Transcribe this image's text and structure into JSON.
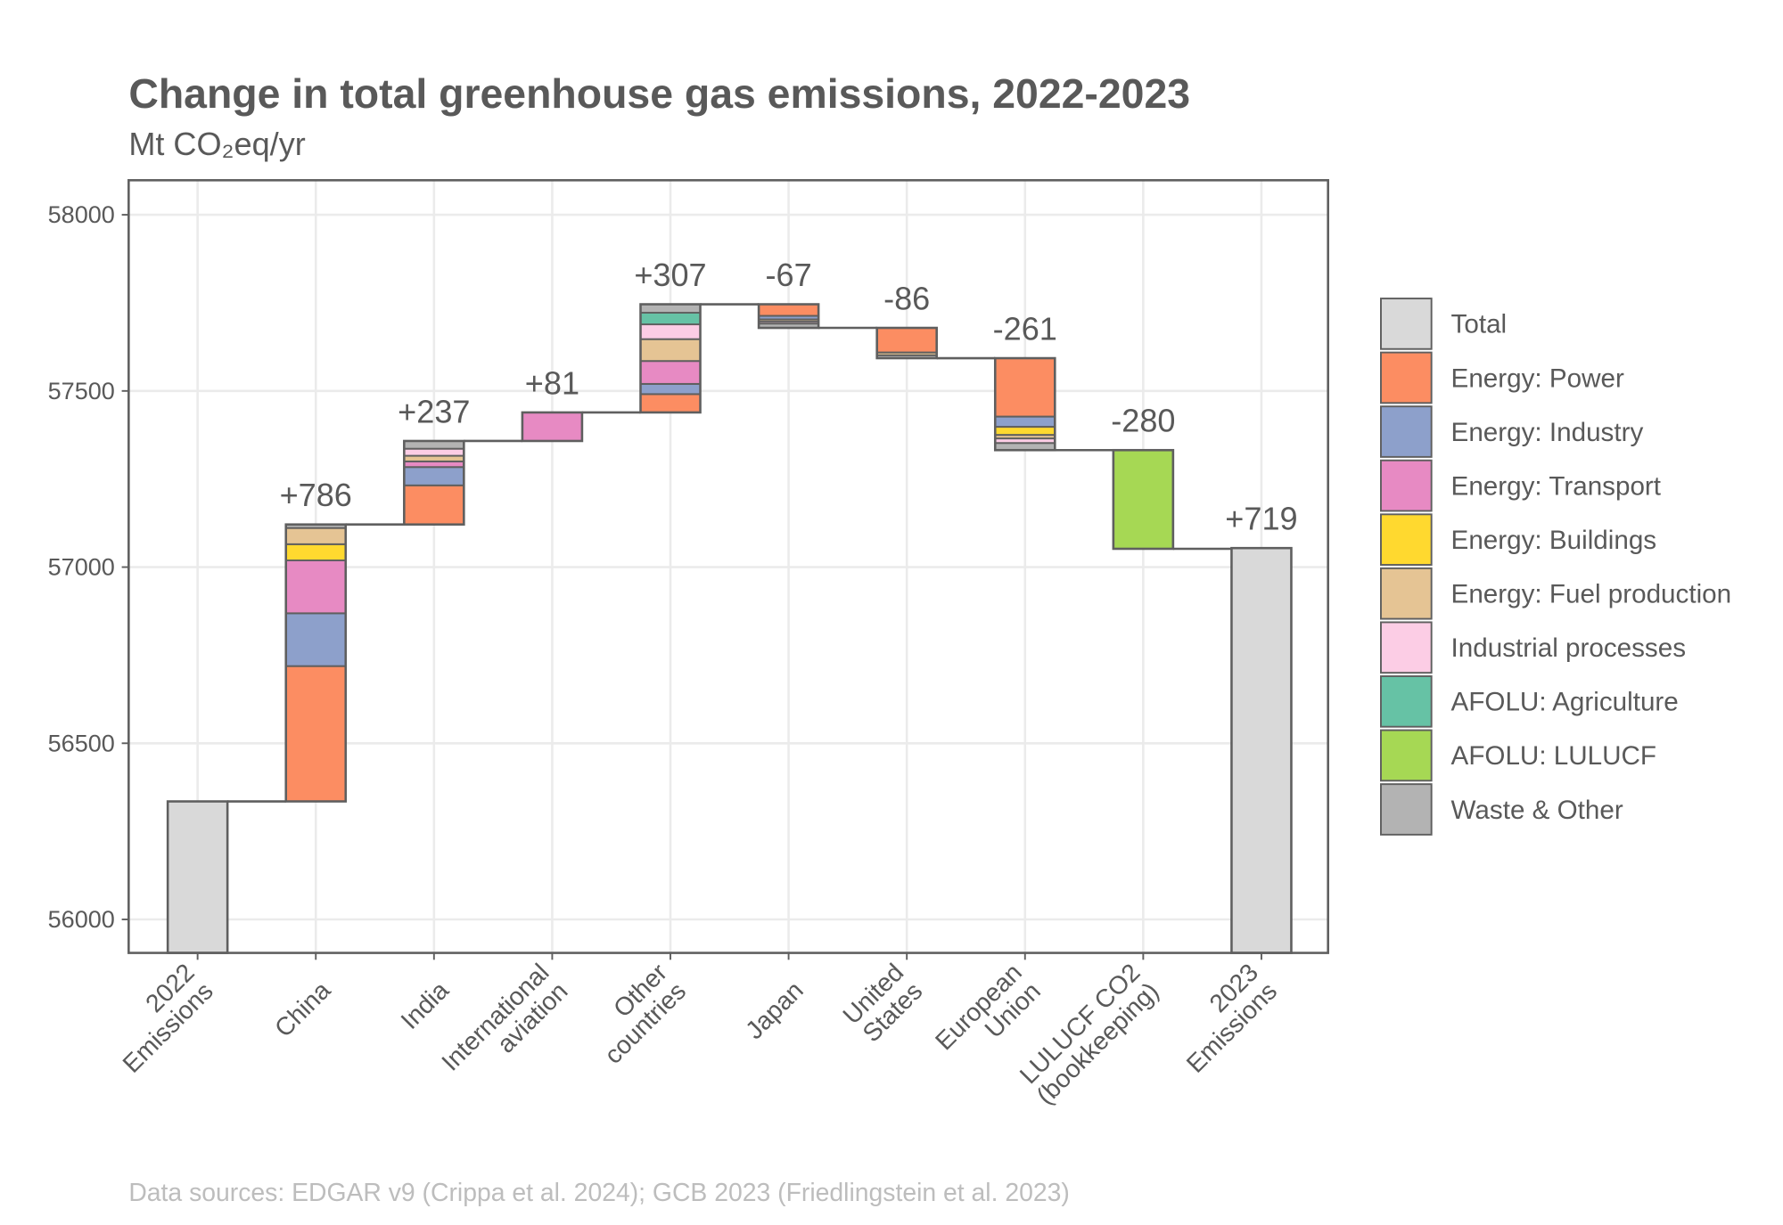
{
  "chart_data": {
    "type": "waterfall",
    "title": "Change in total greenhouse gas emissions, 2022-2023",
    "subtitle": "Mt CO₂eq/yr",
    "caption": "Data sources: EDGAR v9 (Crippa et al. 2024); GCB 2023 (Friedlingstein et al. 2023)",
    "categories": [
      "2022\nEmissions",
      "China",
      "India",
      "International\naviation",
      "Other\ncountries",
      "Japan",
      "United\nStates",
      "European\nUnion",
      "LULUCF CO2\n(bookkeeping)",
      "2023\nEmissions"
    ],
    "net_change": {
      "values": [
        null,
        786,
        237,
        81,
        307,
        -67,
        -86,
        -261,
        -280,
        719
      ],
      "value_labels": [
        null,
        "+786",
        "+237",
        "+81",
        "+307",
        "-67",
        "-86",
        "-261",
        "-280",
        "+719"
      ]
    },
    "series": [
      {
        "name": "Total",
        "color": "#d9d9d9",
        "values": [
          56335,
          null,
          null,
          null,
          null,
          null,
          null,
          null,
          null,
          57054
        ]
      },
      {
        "name": "Energy: Power",
        "color": "#fc8d62",
        "values": [
          null,
          384,
          111,
          null,
          52,
          -33,
          -70,
          -166,
          null,
          null
        ]
      },
      {
        "name": "Energy: Industry",
        "color": "#8da0cb",
        "values": [
          null,
          150,
          52,
          null,
          29,
          -10,
          null,
          -29,
          null,
          null
        ]
      },
      {
        "name": "Energy: Transport",
        "color": "#e78ac3",
        "values": [
          null,
          150,
          16,
          81,
          65,
          null,
          null,
          null,
          null,
          null
        ]
      },
      {
        "name": "Energy: Buildings",
        "color": "#ffd92f",
        "values": [
          null,
          46,
          null,
          null,
          null,
          null,
          null,
          -23,
          null,
          null
        ]
      },
      {
        "name": "Energy: Fuel production",
        "color": "#e5c494",
        "values": [
          null,
          46,
          16,
          null,
          62,
          -6,
          -8,
          -10,
          null,
          null
        ]
      },
      {
        "name": "Industrial processes",
        "color": "#fccde5",
        "values": [
          null,
          null,
          20,
          null,
          42,
          -6,
          null,
          -13,
          null,
          null
        ]
      },
      {
        "name": "AFOLU: Agriculture",
        "color": "#66c2a5",
        "values": [
          null,
          null,
          null,
          null,
          33,
          null,
          null,
          null,
          null,
          null
        ]
      },
      {
        "name": "AFOLU: LULUCF",
        "color": "#a6d854",
        "values": [
          null,
          null,
          null,
          null,
          null,
          null,
          null,
          null,
          -280,
          null
        ]
      },
      {
        "name": "Waste & Other",
        "color": "#b3b3b3",
        "values": [
          null,
          10,
          22,
          null,
          24,
          -12,
          -8,
          -20,
          null,
          null
        ]
      }
    ],
    "ylim": [
      55905,
      58098
    ],
    "yticks": [
      56000,
      56500,
      57000,
      57500,
      58000
    ],
    "grid": true
  }
}
